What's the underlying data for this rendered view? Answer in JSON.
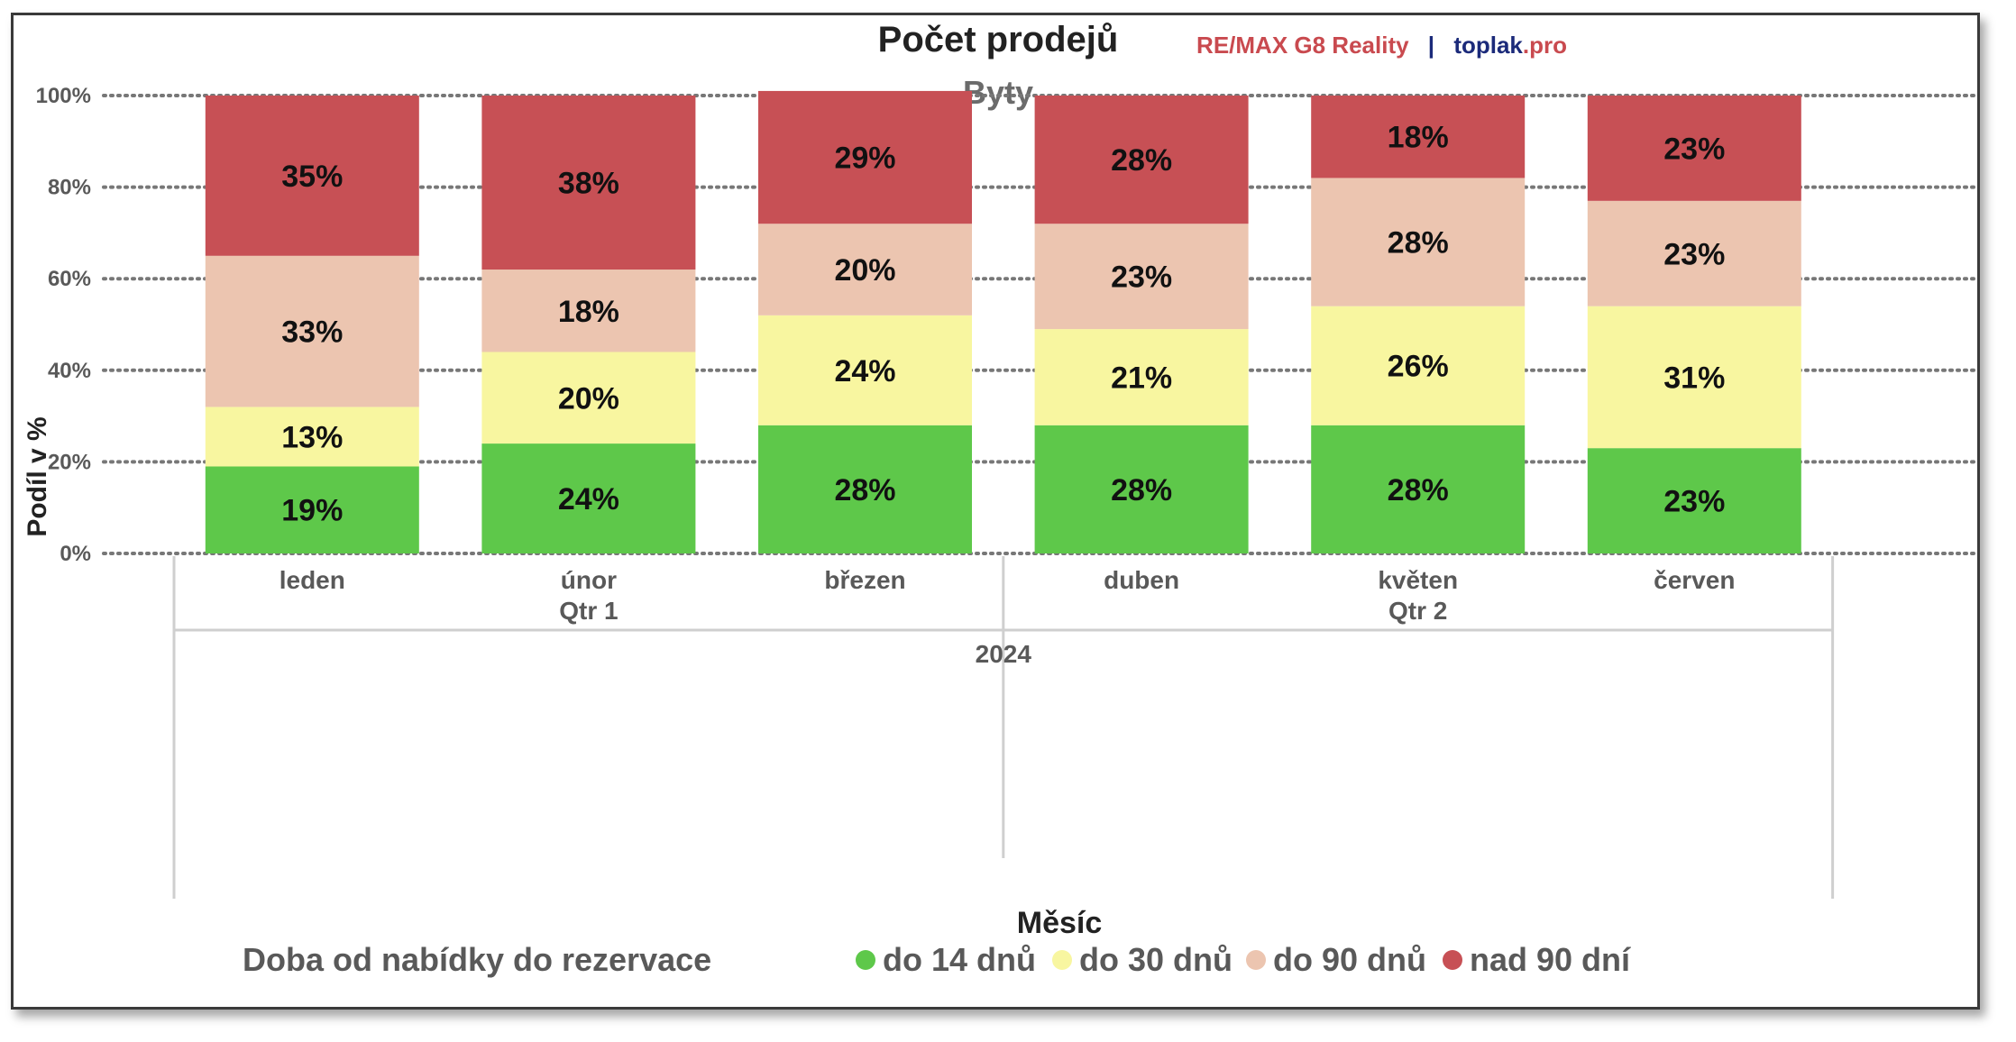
{
  "brand": {
    "remax": "RE/MAX G8 Reality",
    "separator": "|",
    "toplak_a": "toplak",
    "toplak_b": ".pro",
    "remax_color": "#c94a4f",
    "toplak_color": "#1b2a7a"
  },
  "chart_data": {
    "type": "bar",
    "stacked": true,
    "title": "Počet prodejů",
    "subtitle": "Byty",
    "ylabel": "Podíl v %",
    "xlabel": "Měsíc",
    "ylim": [
      0,
      100
    ],
    "yticks": [
      "0%",
      "20%",
      "40%",
      "60%",
      "80%",
      "100%"
    ],
    "grid": true,
    "categories": [
      "leden",
      "únor",
      "březen",
      "duben",
      "květen",
      "červen"
    ],
    "quarters": [
      {
        "label": "Qtr 1",
        "start": 0,
        "end": 2
      },
      {
        "label": "Qtr 2",
        "start": 3,
        "end": 5
      }
    ],
    "year": "2024",
    "legend_title": "Doba od nabídky do rezervace",
    "legend_position": "bottom",
    "series": [
      {
        "name": "do 14 dnů",
        "color": "#5ec84a",
        "values": [
          19,
          24,
          28,
          28,
          28,
          23
        ]
      },
      {
        "name": "do 30 dnů",
        "color": "#f8f6a0",
        "values": [
          13,
          20,
          24,
          21,
          26,
          31
        ]
      },
      {
        "name": "do 90 dnů",
        "color": "#ecc5b0",
        "values": [
          33,
          18,
          20,
          23,
          28,
          23
        ]
      },
      {
        "name": "nad 90 dní",
        "color": "#c75055",
        "values": [
          35,
          38,
          29,
          28,
          18,
          23
        ]
      }
    ]
  }
}
